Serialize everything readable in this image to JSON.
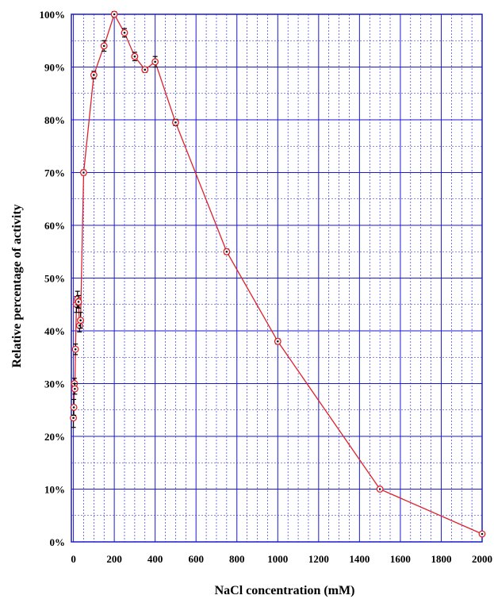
{
  "chart_data": {
    "type": "line",
    "xlabel": "NaCl concentration (mM)",
    "ylabel": "Relative percentage of activity",
    "xlim": [
      -10,
      2000
    ],
    "ylim": [
      0,
      100
    ],
    "x_ticks": [
      "0",
      "200",
      "400",
      "600",
      "800",
      "1000",
      "1200",
      "1400",
      "1600",
      "1800",
      "2000"
    ],
    "y_ticks": [
      "0%",
      "10%",
      "20%",
      "30%",
      "40%",
      "50%",
      "60%",
      "70%",
      "80%",
      "90%",
      "100%"
    ],
    "grid": true,
    "grid_minor": true,
    "colors": {
      "line": "#e0202a",
      "grid": "#1a1ad0",
      "marker_edge": "#e0202a",
      "marker_center": "#111111",
      "error_bar": "#000000"
    },
    "series": [
      {
        "points": [
          {
            "x": 0,
            "y": 23.5,
            "err": 1.8
          },
          {
            "x": 2,
            "y": 25.5,
            "err": 1.5
          },
          {
            "x": 5,
            "y": 30,
            "err": 1.0
          },
          {
            "x": 7,
            "y": 29,
            "err": 1.0
          },
          {
            "x": 10,
            "y": 36.5,
            "err": 1.0
          },
          {
            "x": 15,
            "y": 45,
            "err": 1.5
          },
          {
            "x": 20,
            "y": 46,
            "err": 1.5
          },
          {
            "x": 25,
            "y": 45.5,
            "err": 1.2
          },
          {
            "x": 30,
            "y": 41,
            "err": 1.2
          },
          {
            "x": 35,
            "y": 42,
            "err": 1.5
          },
          {
            "x": 50,
            "y": 70,
            "err": 0.5
          },
          {
            "x": 100,
            "y": 88.5,
            "err": 0.7
          },
          {
            "x": 150,
            "y": 94,
            "err": 1.0
          },
          {
            "x": 200,
            "y": 100,
            "err": 0.5
          },
          {
            "x": 250,
            "y": 96.5,
            "err": 0.8
          },
          {
            "x": 300,
            "y": 92,
            "err": 0.8
          },
          {
            "x": 350,
            "y": 89.5,
            "err": 0.5
          },
          {
            "x": 400,
            "y": 91,
            "err": 1.0
          },
          {
            "x": 500,
            "y": 79.5,
            "err": 0.6
          },
          {
            "x": 750,
            "y": 55,
            "err": 0.5
          },
          {
            "x": 1000,
            "y": 38,
            "err": 0.5
          },
          {
            "x": 1500,
            "y": 10,
            "err": 0.3
          },
          {
            "x": 2000,
            "y": 1.5,
            "err": 0.3
          }
        ]
      }
    ]
  }
}
